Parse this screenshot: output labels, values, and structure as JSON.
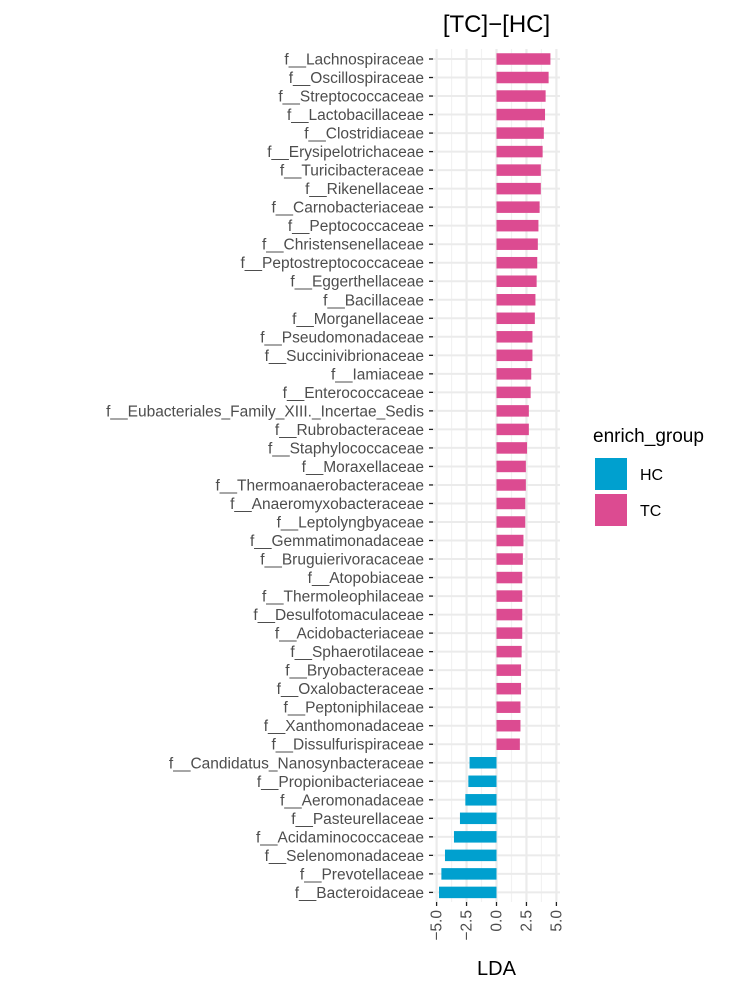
{
  "chart_data": {
    "type": "bar",
    "orientation": "horizontal",
    "title": "[TC]−[HC]",
    "xlabel": "LDA",
    "ylabel": "",
    "xlim": [
      -5.3,
      5.3
    ],
    "xticks": [
      -5.0,
      -2.5,
      0.0,
      2.5,
      5.0
    ],
    "xtick_labels": [
      "−5.0",
      "−2.5",
      "0.0",
      "2.5",
      "5.0"
    ],
    "grid": true,
    "legend": {
      "title": "enrich_group",
      "placement": "right",
      "entries": [
        {
          "label": "HC",
          "color": "#00A0CF"
        },
        {
          "label": "TC",
          "color": "#DC4B91"
        }
      ]
    },
    "categories": [
      "f__Lachnospiraceae",
      "f__Oscillospiraceae",
      "f__Streptococcaceae",
      "f__Lactobacillaceae",
      "f__Clostridiaceae",
      "f__Erysipelotrichaceae",
      "f__Turicibacteraceae",
      "f__Rikenellaceae",
      "f__Carnobacteriaceae",
      "f__Peptococcaceae",
      "f__Christensenellaceae",
      "f__Peptostreptococcaceae",
      "f__Eggerthellaceae",
      "f__Bacillaceae",
      "f__Morganellaceae",
      "f__Pseudomonadaceae",
      "f__Succinivibrionaceae",
      "f__Iamiaceae",
      "f__Enterococcaceae",
      "f__Eubacteriales_Family_XIII._Incertae_Sedis",
      "f__Rubrobacteraceae",
      "f__Staphylococcaceae",
      "f__Moraxellaceae",
      "f__Thermoanaerobacteraceae",
      "f__Anaeromyxobacteraceae",
      "f__Leptolyngbyaceae",
      "f__Gemmatimonadaceae",
      "f__Bruguierivoracaceae",
      "f__Atopobiaceae",
      "f__Thermoleophilaceae",
      "f__Desulfotomaculaceae",
      "f__Acidobacteriaceae",
      "f__Sphaerotilaceae",
      "f__Bryobacteraceae",
      "f__Oxalobacteraceae",
      "f__Peptoniphilaceae",
      "f__Xanthomonadaceae",
      "f__Dissulfurispiraceae",
      "f__Candidatus_Nanosynbacteraceae",
      "f__Propionibacteriaceae",
      "f__Aeromonadaceae",
      "f__Pasteurellaceae",
      "f__Acidaminococcaceae",
      "f__Selenomonadaceae",
      "f__Prevotellaceae",
      "f__Bacteroidaceae"
    ],
    "values": [
      4.5,
      4.35,
      4.1,
      4.05,
      3.95,
      3.85,
      3.7,
      3.7,
      3.6,
      3.5,
      3.45,
      3.4,
      3.35,
      3.25,
      3.2,
      3.0,
      3.0,
      2.9,
      2.85,
      2.7,
      2.7,
      2.55,
      2.45,
      2.45,
      2.4,
      2.4,
      2.25,
      2.2,
      2.15,
      2.15,
      2.15,
      2.15,
      2.1,
      2.05,
      2.05,
      2.0,
      2.0,
      1.95,
      -2.25,
      -2.35,
      -2.6,
      -3.05,
      -3.55,
      -4.3,
      -4.6,
      -4.8
    ],
    "groups": [
      "TC",
      "TC",
      "TC",
      "TC",
      "TC",
      "TC",
      "TC",
      "TC",
      "TC",
      "TC",
      "TC",
      "TC",
      "TC",
      "TC",
      "TC",
      "TC",
      "TC",
      "TC",
      "TC",
      "TC",
      "TC",
      "TC",
      "TC",
      "TC",
      "TC",
      "TC",
      "TC",
      "TC",
      "TC",
      "TC",
      "TC",
      "TC",
      "TC",
      "TC",
      "TC",
      "TC",
      "TC",
      "TC",
      "HC",
      "HC",
      "HC",
      "HC",
      "HC",
      "HC",
      "HC",
      "HC"
    ]
  }
}
